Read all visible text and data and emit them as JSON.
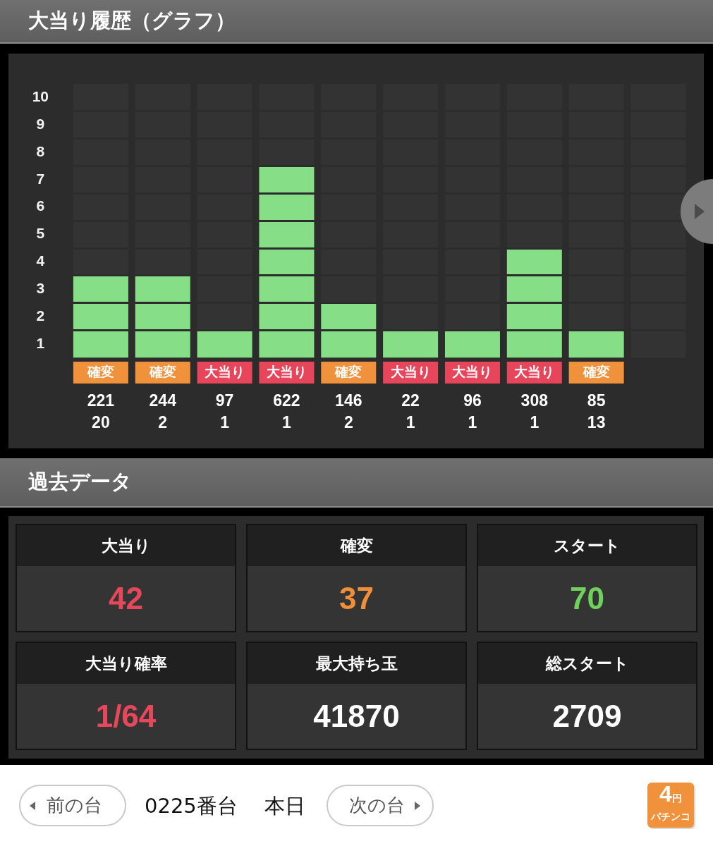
{
  "chart_data": [
    {
      "type": "bar",
      "title": "大当り履歴（グラフ）",
      "categories": [
        "確変\n221\n20",
        "確変\n244\n2",
        "大当り\n97\n1",
        "大当り\n622\n1",
        "確変\n146\n2",
        "大当り\n22\n1",
        "大当り\n96\n1",
        "大当り\n308\n1",
        "確変\n85\n13",
        null
      ],
      "stacked": true,
      "series": [
        {
          "color": "#86df86",
          "values": [
            3,
            3,
            1,
            7,
            2,
            1,
            1,
            4,
            1,
            0
          ]
        },
        {
          "color": "#333333",
          "values": [
            7,
            7,
            9,
            3,
            8,
            9,
            9,
            6,
            9,
            10
          ]
        }
      ],
      "ylim": [
        0,
        10
      ],
      "yticks": [
        {
          "value": 0.5,
          "label": "1"
        },
        {
          "value": 1.5,
          "label": "2"
        },
        {
          "value": 2.5,
          "label": "3"
        },
        {
          "value": 3.5,
          "label": "4"
        },
        {
          "value": 4.5,
          "label": "5"
        },
        {
          "value": 5.5,
          "label": "6"
        },
        {
          "value": 6.5,
          "label": "7"
        },
        {
          "value": 7.5,
          "label": "8"
        },
        {
          "value": 8.5,
          "label": "9"
        },
        {
          "value": 9.5,
          "label": "10"
        }
      ]
    },
    {
      "type": "other",
      "title": "過去データ",
      "annotations": [
        "大当り",
        "42",
        "確変",
        "37",
        "スタート",
        "70",
        "大当り確率",
        "1/64",
        "最大持ち玉",
        "41870",
        "総スタート",
        "2709"
      ]
    },
    {
      "type": "other",
      "annotations": [
        "前の台",
        "0225番台",
        "本日",
        "次の台",
        "4円",
        "パチンコ"
      ]
    }
  ]
}
